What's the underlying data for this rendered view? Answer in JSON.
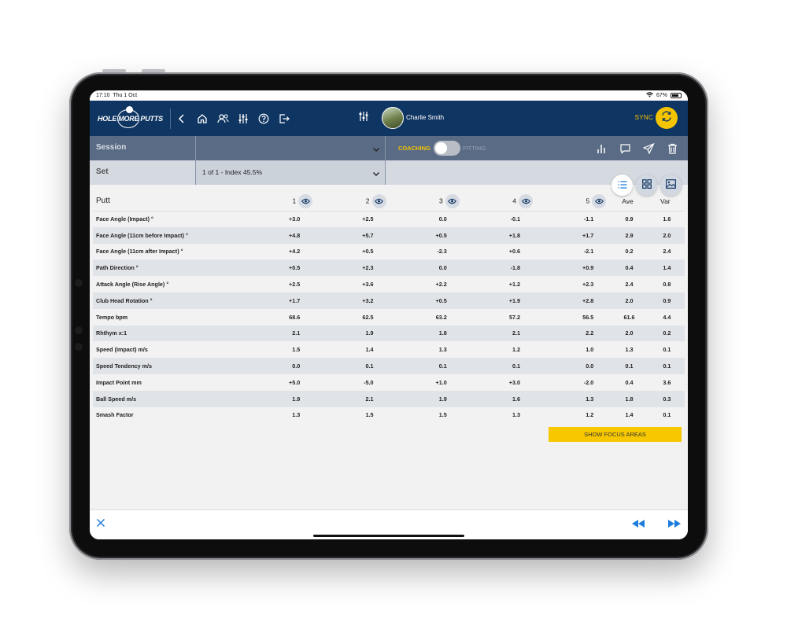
{
  "statusbar": {
    "time": "17:10",
    "date": "Thu 1 Oct",
    "battery": "67%"
  },
  "header": {
    "logo_left": "HOLE",
    "logo_middle": "MORE",
    "logo_right": "PUTTS",
    "username": "Charlie Smith",
    "sync_label": "SYNC"
  },
  "session": {
    "label": "Session",
    "value": ""
  },
  "set": {
    "label": "Set",
    "value": "1 of 1 - Index 45.5%"
  },
  "mode": {
    "coaching": "COACHING",
    "fitting": "FITTING"
  },
  "table": {
    "putt_header": "Putt",
    "columns": [
      "1",
      "2",
      "3",
      "4",
      "5"
    ],
    "ave_header": "Ave",
    "var_header": "Var",
    "rows": [
      {
        "label": "Face Angle (Impact) °",
        "values": [
          "+3.0",
          "+2.5",
          "0.0",
          "-0.1",
          "-1.1"
        ],
        "ave": "0.9",
        "var": "1.6"
      },
      {
        "label": "Face Angle (11cm before Impact) °",
        "values": [
          "+4.8",
          "+5.7",
          "+0.5",
          "+1.8",
          "+1.7"
        ],
        "ave": "2.9",
        "var": "2.0"
      },
      {
        "label": "Face Angle (11cm after Impact) °",
        "values": [
          "+4.2",
          "+0.5",
          "-2.3",
          "+0.6",
          "-2.1"
        ],
        "ave": "0.2",
        "var": "2.4"
      },
      {
        "label": "Path Direction °",
        "values": [
          "+0.5",
          "+2.3",
          "0.0",
          "-1.8",
          "+0.9"
        ],
        "ave": "0.4",
        "var": "1.4"
      },
      {
        "label": "Attack Angle (Rise Angle) °",
        "values": [
          "+2.5",
          "+3.6",
          "+2.2",
          "+1.2",
          "+2.3"
        ],
        "ave": "2.4",
        "var": "0.8"
      },
      {
        "label": "Club Head Rotation °",
        "values": [
          "+1.7",
          "+3.2",
          "+0.5",
          "+1.9",
          "+2.8"
        ],
        "ave": "2.0",
        "var": "0.9"
      },
      {
        "label": "Tempo bpm",
        "values": [
          "68.6",
          "62.5",
          "63.2",
          "57.2",
          "56.5"
        ],
        "ave": "61.6",
        "var": "4.4"
      },
      {
        "label": "Rhthym x:1",
        "values": [
          "2.1",
          "1.9",
          "1.8",
          "2.1",
          "2.2"
        ],
        "ave": "2.0",
        "var": "0.2"
      },
      {
        "label": "Speed (Impact) m/s",
        "values": [
          "1.5",
          "1.4",
          "1.3",
          "1.2",
          "1.0"
        ],
        "ave": "1.3",
        "var": "0.1"
      },
      {
        "label": "Speed Tendency m/s",
        "values": [
          "0.0",
          "0.1",
          "0.1",
          "0.1",
          "0.0"
        ],
        "ave": "0.1",
        "var": "0.1"
      },
      {
        "label": "Impact Point mm",
        "values": [
          "+5.0",
          "-5.0",
          "+1.0",
          "+3.0",
          "-2.0"
        ],
        "ave": "0.4",
        "var": "3.6"
      },
      {
        "label": "Ball Speed m/s",
        "values": [
          "1.9",
          "2.1",
          "1.9",
          "1.6",
          "1.3"
        ],
        "ave": "1.8",
        "var": "0.3"
      },
      {
        "label": "Smash Factor",
        "values": [
          "1.3",
          "1.5",
          "1.5",
          "1.3",
          "1.2"
        ],
        "ave": "1.4",
        "var": "0.1"
      }
    ]
  },
  "focus_button": "SHOW FOCUS AREAS",
  "colors": {
    "header_bg": "#0f3562",
    "accent_yellow": "#f5c400",
    "link_blue": "#1d7ddc"
  },
  "icons": {
    "nav": [
      "back-icon",
      "home-icon",
      "users-icon",
      "sliders-icon",
      "help-icon",
      "logout-icon"
    ],
    "actions": [
      "bar-chart-icon",
      "comment-icon",
      "send-icon",
      "trash-icon"
    ],
    "views": [
      "list-icon",
      "grid-icon",
      "image-icon"
    ]
  }
}
